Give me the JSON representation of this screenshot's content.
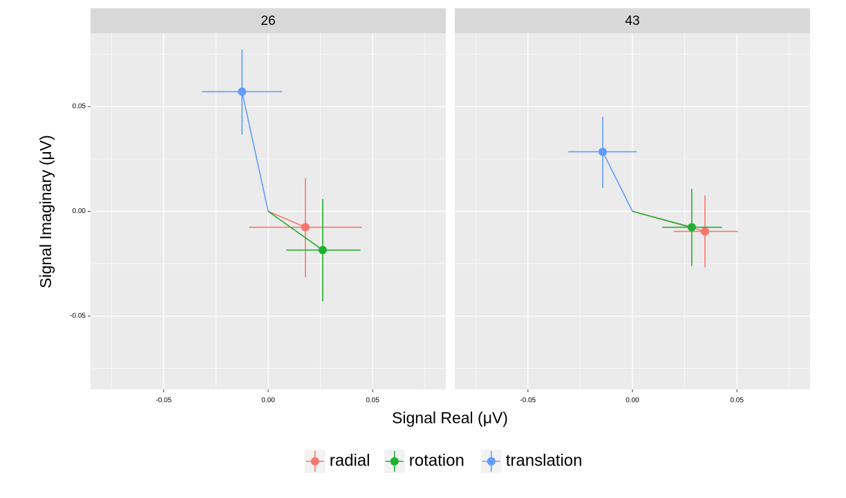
{
  "chart_data": {
    "type": "scatter",
    "facets": [
      "26",
      "43"
    ],
    "xlabel": "Signal Real (μV)",
    "ylabel": "Signal Imaginary (μV)",
    "xlim": [
      -0.085,
      0.085
    ],
    "ylim": [
      -0.085,
      0.085
    ],
    "xticks": [
      -0.05,
      {
        "value": 0,
        "label": "0.00"
      },
      0.05
    ],
    "yticks": [
      -0.05,
      {
        "value": 0,
        "label": "0.00"
      },
      0.05
    ],
    "grid": true,
    "origin_segments": true,
    "legend": "bottom",
    "series": [
      {
        "name": "radial",
        "color": "#f8766d",
        "x": [
          0.0178,
          0.0347
        ],
        "y": [
          -0.0076,
          -0.0096
        ],
        "xmin": [
          -0.0092,
          0.0198
        ],
        "xmax": [
          0.0449,
          0.0505
        ],
        "ymin": [
          -0.0314,
          -0.0267
        ],
        "ymax": [
          0.0158,
          0.0076
        ]
      },
      {
        "name": "rotation",
        "color": "#1fb030",
        "x": [
          0.0261,
          0.0284
        ],
        "y": [
          -0.0185,
          -0.0076
        ],
        "xmin": [
          0.0086,
          0.0142
        ],
        "xmax": [
          0.0442,
          0.0429
        ],
        "ymin": [
          -0.0429,
          -0.0261
        ],
        "ymax": [
          0.0059,
          0.0106
        ]
      },
      {
        "name": "translation",
        "color": "#619cff",
        "x": [
          -0.0125,
          -0.0142
        ],
        "y": [
          0.0571,
          0.0284
        ],
        "xmin": [
          -0.0317,
          -0.0307
        ],
        "xmax": [
          0.0066,
          0.002
        ],
        "ymin": [
          0.0366,
          0.0112
        ],
        "ymax": [
          0.0772,
          0.0452
        ]
      }
    ]
  }
}
